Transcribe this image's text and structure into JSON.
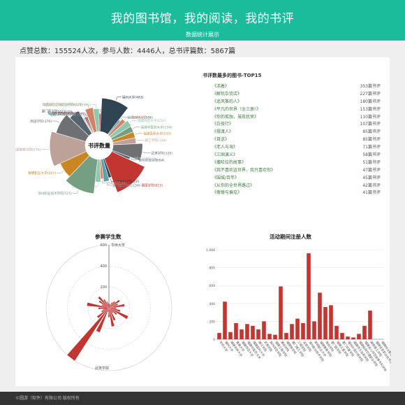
{
  "header": {
    "title": "我的图书馆，我的阅读，我的书评",
    "subtitle": "数据统计展示"
  },
  "summary": {
    "text": "点赞总数：155524人次，参与人数：4446人，总书评篇数：5867篇"
  },
  "top15": {
    "title": "书评数最多的图书-TOP15",
    "items": [
      {
        "name": "《活着》",
        "count": "353篇书评"
      },
      {
        "name": "《解忧杂货店》",
        "count": "227篇书评"
      },
      {
        "name": "《追风筝的人》",
        "count": "180篇书评"
      },
      {
        "name": "《平凡的世界（全三册）》",
        "count": "153篇书评"
      },
      {
        "name": "《你的孤独，虽败犹荣》",
        "count": "110篇书评"
      },
      {
        "name": "《白夜行》",
        "count": "107篇书评"
      },
      {
        "name": "《摆渡人》",
        "count": "85篇书评"
      },
      {
        "name": "《目送》",
        "count": "85篇书评"
      },
      {
        "name": "《老人与海》",
        "count": "71篇书评"
      },
      {
        "name": "《三国演义》",
        "count": "58篇书评"
      },
      {
        "name": "《撒哈拉的故事》",
        "count": "51篇书评"
      },
      {
        "name": "《我不喜欢这世界，我只喜欢你》",
        "count": "47篇书评"
      },
      {
        "name": "《围城/百年》",
        "count": "45篇书评"
      },
      {
        "name": "《从你的全世界路过》",
        "count": "42篇书评"
      },
      {
        "name": "《傲慢与偏见》",
        "count": "41篇书评"
      }
    ]
  },
  "chart_data": [
    {
      "type": "pie",
      "title": "书评数量",
      "slices": [
        {
          "name": "华侨大学",
          "value": 47,
          "color": "#c23531"
        },
        {
          "name": "福州大学",
          "value": 483,
          "color": "#2f4554"
        },
        {
          "name": "福建农林大学",
          "value": 50,
          "color": "#61a0a8"
        },
        {
          "name": "集美大学",
          "value": 99,
          "color": "#d48265"
        },
        {
          "name": "福建师范大学",
          "value": 150,
          "color": "#91c7ae"
        },
        {
          "name": "福建中医药大学",
          "value": 134,
          "color": "#749f83"
        },
        {
          "name": "福建医科大学",
          "value": 133,
          "color": "#ca8622"
        },
        {
          "name": "闽江学院",
          "value": 136,
          "color": "#bda29a"
        },
        {
          "name": "武夷学院",
          "value": 326,
          "color": "#6e7074"
        },
        {
          "name": "泉州师范学院",
          "value": 64,
          "color": "#546570"
        },
        {
          "name": "福建工程学院",
          "value": 2,
          "color": "#c4ccd3"
        },
        {
          "name": "莆田学院",
          "value": 615,
          "color": "#c23531"
        },
        {
          "name": "福建商学院",
          "value": 72,
          "color": "#2f4554"
        },
        {
          "name": "厦门理工学院",
          "value": 127,
          "color": "#61a0a8"
        },
        {
          "name": "三明学院",
          "value": 66,
          "color": "#d48265"
        },
        {
          "name": "龙岩学院",
          "value": 126,
          "color": "#91c7ae"
        },
        {
          "name": "漳州职业技术学院",
          "value": 525,
          "color": "#749f83"
        },
        {
          "name": "黎明职业大学",
          "value": 307,
          "color": "#ca8622"
        },
        {
          "name": "福建警察学院",
          "value": 579,
          "color": "#bda29a"
        },
        {
          "name": "南田学院",
          "value": 379,
          "color": "#6e7074"
        },
        {
          "name": "厦门医学院",
          "value": 222,
          "color": "#546570"
        },
        {
          "name": "福建江夏学院",
          "value": 45,
          "color": "#c4ccd3"
        },
        {
          "name": "厦门华厦学院",
          "value": 40,
          "color": "#c23531"
        },
        {
          "name": "福州外语外贸学院",
          "value": 35,
          "color": "#2f4554"
        },
        {
          "name": "福建师大协和学院",
          "value": 15,
          "color": "#61a0a8"
        },
        {
          "name": "福建船政交通职业学院",
          "value": 171,
          "color": "#d48265"
        },
        {
          "name": "福建幼儿师范高等专科学校",
          "value": 132,
          "color": "#91c7ae"
        }
      ]
    },
    {
      "type": "polar-bar",
      "title": "参赛学生数",
      "radial_ticks": [
        0,
        200,
        400,
        600
      ],
      "top_label": "华侨大学",
      "bottom_label": "武夷学院",
      "values": [
        40,
        30,
        60,
        80,
        120,
        90,
        150,
        70,
        110,
        200,
        95,
        60,
        130,
        180,
        90,
        40,
        250,
        600,
        140,
        80,
        60,
        100,
        210,
        70,
        110,
        140,
        90,
        60,
        40
      ]
    },
    {
      "type": "bar",
      "title": "活动期间注册人数",
      "ylim": [
        0,
        1000
      ],
      "yticks": [
        0,
        200,
        400,
        600,
        800,
        "1,000"
      ],
      "categories": [
        "华侨大学",
        "福州大学",
        "福建农林大学",
        "集美大学",
        "福建师范大学",
        "福建中医药大学",
        "福建医科大学",
        "闽江学院",
        "武夷学院",
        "泉州师范学院",
        "福建工程学院",
        "莆田学院",
        "福建商学院",
        "厦门理工学院",
        "三明学院",
        "龙岩学院",
        "漳州职业技术学院",
        "黎明职业大学",
        "福建警察学院",
        "南田学院",
        "厦门医学院",
        "福建江夏学院",
        "厦门华厦学院",
        "福州外语外贸学院",
        "福建师大协和学院",
        "福建船政交通职业学院",
        "福建幼儿师范高等专科学校",
        "闽南理工学院",
        "福建信息职业技术学院",
        "福建林业职业技术学院"
      ],
      "values": [
        70,
        420,
        80,
        180,
        110,
        170,
        150,
        110,
        200,
        60,
        50,
        590,
        70,
        170,
        230,
        180,
        960,
        200,
        520,
        360,
        380,
        150,
        70,
        30,
        20,
        60,
        150,
        320,
        0,
        0
      ]
    }
  ],
  "footer": {
    "text": "©圆游（软件）有限公司 版权所有"
  }
}
